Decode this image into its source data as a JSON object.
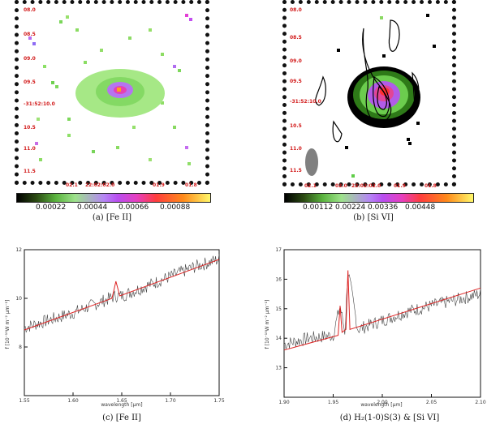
{
  "panel_a": {
    "caption": "(a) [Fe II]",
    "ra_labels": [
      "02.1",
      "22:02:02.0",
      "01.9",
      "01.8"
    ],
    "dec_labels": [
      "08.0",
      "08.5",
      "09.0",
      "09.5",
      "-31:52:10.0",
      "10.5",
      "11.0",
      "11.5"
    ],
    "colorbar_ticks": [
      "0.00022",
      "0.00044",
      "0.00066",
      "0.00088"
    ]
  },
  "panel_b": {
    "caption": "(b) [Si VI]",
    "ra_labels": [
      "02.1",
      "02.0",
      "22:02:02.0",
      "01.9",
      "01.8"
    ],
    "dec_labels": [
      "08.0",
      "08.5",
      "09.0",
      "09.5",
      "-31:52:10.0",
      "10.5",
      "11.0",
      "11.5"
    ],
    "colorbar_ticks": [
      "0.00112",
      "0.00224",
      "0.00336",
      "0.00448"
    ]
  },
  "panel_c": {
    "caption": "(c) [Fe II]",
    "ylabel": "f [10⁻¹⁹W m⁻² μm⁻¹]",
    "xlabel": "wavelength [μm]",
    "x_ticks": [
      "1.55",
      "1.60",
      "1.65",
      "1.70",
      "1.75"
    ],
    "y_ticks": [
      "8",
      "10",
      "12"
    ]
  },
  "panel_d": {
    "caption": "(d) H₂(1-0)S(3) & [Si VI]",
    "ylabel": "f [10⁻¹⁹W m⁻² μm⁻¹]",
    "xlabel": "wavelength [μm]",
    "x_ticks": [
      "1.90",
      "1.95",
      "2.00",
      "2.05",
      "2.10"
    ],
    "y_ticks": [
      "13",
      "14",
      "15",
      "16",
      "17"
    ]
  },
  "chart_data": [
    {
      "type": "line",
      "title": "(c) [Fe II]",
      "xlabel": "wavelength [μm]",
      "ylabel": "f [10⁻¹⁹W m⁻² μm⁻¹]",
      "xlim": [
        1.55,
        1.75
      ],
      "ylim": [
        6,
        12
      ],
      "series": [
        {
          "name": "spectrum",
          "x": [
            1.55,
            1.575,
            1.6,
            1.625,
            1.644,
            1.65,
            1.675,
            1.7,
            1.725,
            1.75
          ],
          "values": [
            8.8,
            9.1,
            9.4,
            9.8,
            10.1,
            10.1,
            10.5,
            10.9,
            11.3,
            11.6
          ]
        },
        {
          "name": "fit",
          "x": [
            1.55,
            1.64,
            1.644,
            1.648,
            1.75
          ],
          "values": [
            8.7,
            10.0,
            10.7,
            10.1,
            11.6
          ]
        }
      ]
    },
    {
      "type": "line",
      "title": "(d) H₂(1-0)S(3) & [Si VI]",
      "xlabel": "wavelength [μm]",
      "ylabel": "f [10⁻¹⁹W m⁻² μm⁻¹]",
      "xlim": [
        1.9,
        2.1
      ],
      "ylim": [
        12,
        17
      ],
      "series": [
        {
          "name": "spectrum",
          "x": [
            1.9,
            1.925,
            1.95,
            1.957,
            1.962,
            1.965,
            1.975,
            2.0,
            2.025,
            2.05,
            2.075,
            2.1
          ],
          "values": [
            13.8,
            14.0,
            14.1,
            15.1,
            14.2,
            16.3,
            14.3,
            14.6,
            14.9,
            15.1,
            15.3,
            15.5
          ]
        },
        {
          "name": "fit",
          "x": [
            1.9,
            1.955,
            1.957,
            1.959,
            1.963,
            1.965,
            1.967,
            2.1
          ],
          "values": [
            13.6,
            14.1,
            15.1,
            14.2,
            14.3,
            16.3,
            14.3,
            15.7
          ]
        }
      ]
    }
  ]
}
